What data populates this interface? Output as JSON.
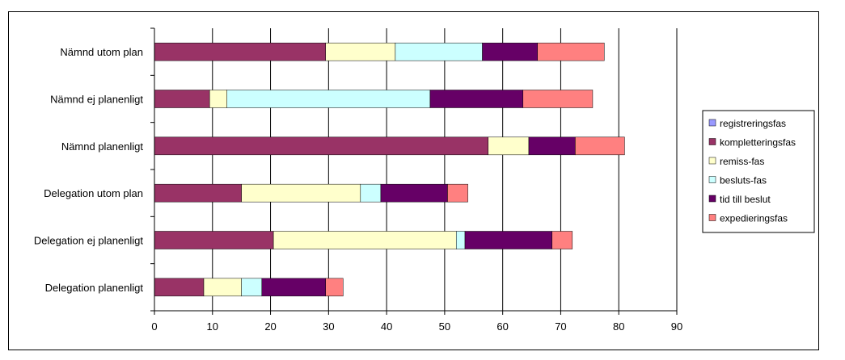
{
  "chart_data": {
    "type": "bar",
    "orientation": "horizontal",
    "stacked": true,
    "categories": [
      "Nämnd utom plan",
      "Nämnd ej planenligt",
      "Nämnd planenligt",
      "Delegation utom plan",
      "Delegation ej planenligt",
      "Delegation planenligt"
    ],
    "series": [
      {
        "name": "registreringsfas",
        "color": "#9999FF",
        "values": [
          0,
          0,
          0,
          0,
          0,
          0
        ]
      },
      {
        "name": "kompletteringsfas",
        "color": "#993366",
        "values": [
          29.5,
          9.5,
          57.5,
          15,
          20.5,
          8.5
        ]
      },
      {
        "name": "remiss-fas",
        "color": "#FFFFCC",
        "values": [
          12,
          3,
          7,
          20.5,
          31.5,
          6.5
        ]
      },
      {
        "name": "besluts-fas",
        "color": "#CCFFFF",
        "values": [
          15,
          35,
          0,
          3.5,
          1.5,
          3.5
        ]
      },
      {
        "name": "tid till beslut",
        "color": "#660066",
        "values": [
          9.5,
          16,
          8,
          11.5,
          15,
          11
        ]
      },
      {
        "name": "expedieringsfas",
        "color": "#FF8080",
        "values": [
          11.5,
          12,
          8.5,
          3.5,
          3.5,
          3
        ]
      }
    ],
    "xlim": [
      0,
      90
    ],
    "xticks": [
      0,
      10,
      20,
      30,
      40,
      50,
      60,
      70,
      80,
      90
    ],
    "grid": true,
    "legend_position": "right"
  }
}
